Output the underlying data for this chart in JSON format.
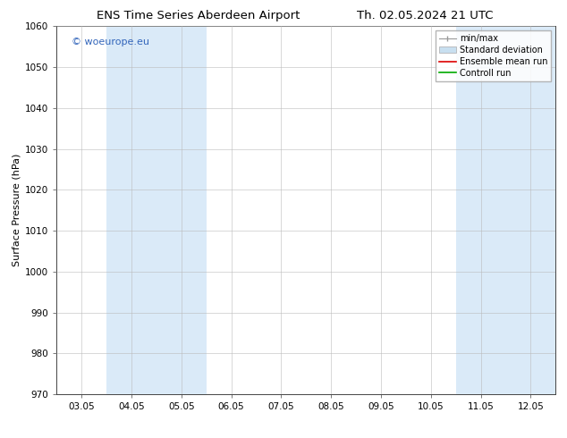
{
  "title_left": "ENS Time Series Aberdeen Airport",
  "title_right": "Th. 02.05.2024 21 UTC",
  "ylabel": "Surface Pressure (hPa)",
  "ylim": [
    970,
    1060
  ],
  "yticks": [
    970,
    980,
    990,
    1000,
    1010,
    1020,
    1030,
    1040,
    1050,
    1060
  ],
  "xlim_start": -0.5,
  "xlim_end": 9.5,
  "xtick_positions": [
    0,
    1,
    2,
    3,
    4,
    5,
    6,
    7,
    8,
    9
  ],
  "xtick_labels": [
    "03.05",
    "04.05",
    "05.05",
    "06.05",
    "07.05",
    "08.05",
    "09.05",
    "10.05",
    "11.05",
    "12.05"
  ],
  "shaded_bands": [
    {
      "xstart": 0.5,
      "xend": 2.5
    },
    {
      "xstart": 7.5,
      "xend": 8.5
    },
    {
      "xstart": 8.5,
      "xend": 9.5
    }
  ],
  "shaded_color": "#daeaf8",
  "watermark_text": "© woeurope.eu",
  "watermark_color": "#3366bb",
  "legend_entries": [
    {
      "label": "min/max",
      "color": "#aaaaaa",
      "style": "errorbar"
    },
    {
      "label": "Standard deviation",
      "color": "#c8dff0",
      "style": "band"
    },
    {
      "label": "Ensemble mean run",
      "color": "#dd0000",
      "style": "line"
    },
    {
      "label": "Controll run",
      "color": "#00aa00",
      "style": "line"
    }
  ],
  "background_color": "#ffffff",
  "plot_bg_color": "#ffffff",
  "spine_color": "#444444",
  "grid_color": "#bbbbbb",
  "title_fontsize": 9.5,
  "axis_fontsize": 8,
  "tick_fontsize": 7.5,
  "legend_fontsize": 7,
  "watermark_fontsize": 8
}
